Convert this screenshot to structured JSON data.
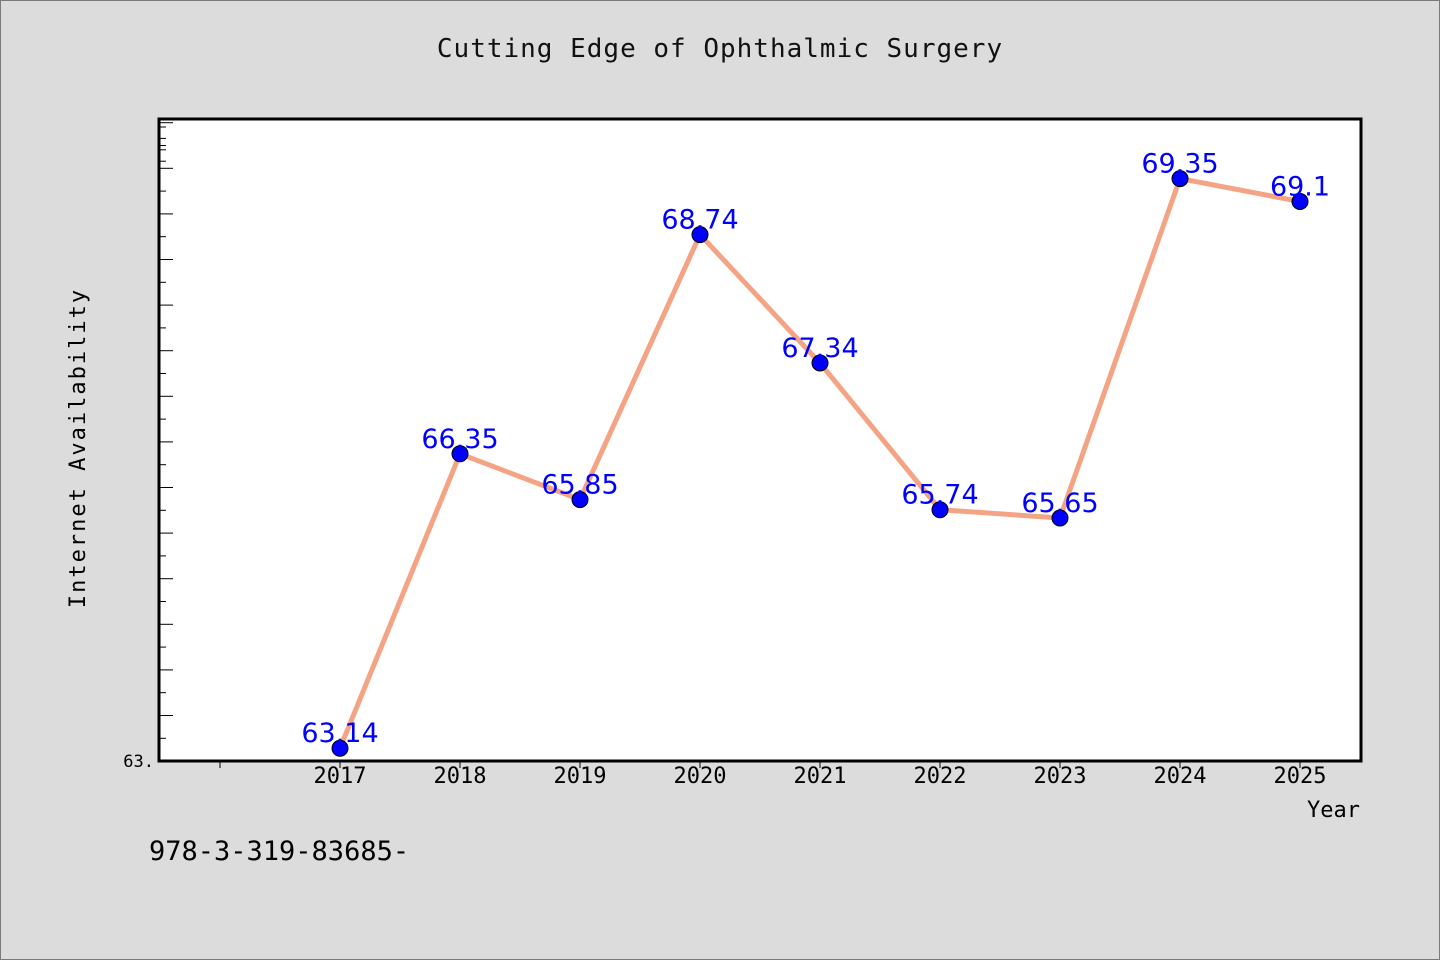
{
  "title": "Cutting Edge of Ophthalmic Surgery",
  "footer_text": "978-3-319-83685-",
  "colors": {
    "background": "#dcdcdc",
    "plot_area": "#ffffff",
    "line": "#f4a484",
    "marker": "#0000ff",
    "data_label": "#0000ff"
  },
  "chart_data": {
    "type": "line",
    "x": [
      "2017",
      "2018",
      "2019",
      "2020",
      "2021",
      "2022",
      "2023",
      "2024",
      "2025"
    ],
    "series": [
      {
        "values": [
          63.14,
          66.35,
          65.85,
          68.74,
          67.34,
          65.74,
          65.65,
          69.35,
          69.1
        ]
      }
    ],
    "data_labels": [
      "63.14",
      "66.35",
      "65.85",
      "68.74",
      "67.34",
      "65.74",
      "65.65",
      "69.35",
      "69.1"
    ],
    "xlabel": "Year",
    "ylabel": "Internet Availability",
    "y_tick_label": "63.",
    "ylim": [
      63,
      70
    ],
    "legend": "none",
    "grid": false
  }
}
